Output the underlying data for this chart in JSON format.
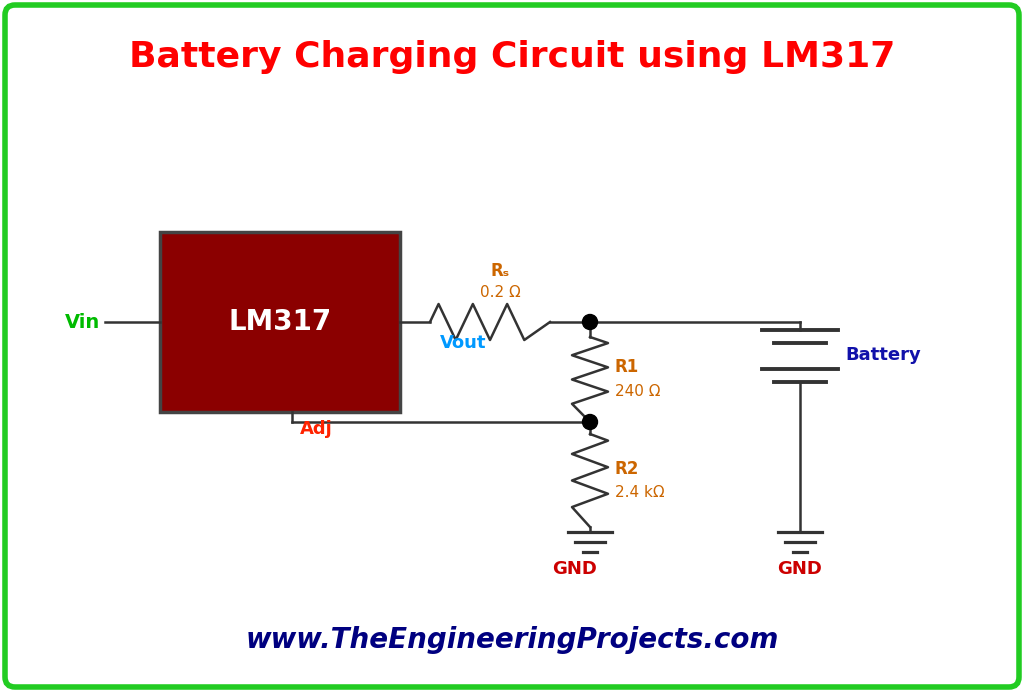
{
  "title": "Battery Charging Circuit using LM317",
  "title_color": "#FF0000",
  "title_fontsize": 26,
  "website": "www.TheEngineeringProjects.com",
  "website_color": "#000080",
  "website_fontsize": 20,
  "bg_color": "#FFFFFF",
  "border_color": "#22CC22",
  "lm317_box_color": "#8B0000",
  "lm317_border_color": "#444444",
  "lm317_text_color": "#FFFFFF",
  "lm317_label": "LM317",
  "vin_label": "Vin",
  "vin_color": "#00BB00",
  "vout_label": "Vout",
  "vout_color": "#0099FF",
  "adj_label": "Adj",
  "adj_color": "#FF2200",
  "rs_label": "Rₛ",
  "rs_value": "0.2 Ω",
  "rs_label_color": "#CC6600",
  "r1_label": "R1",
  "r1_value": "240 Ω",
  "r1_label_color": "#CC6600",
  "r2_label": "R2",
  "r2_value": "2.4 kΩ",
  "r2_label_color": "#CC6600",
  "gnd_label": "GND",
  "gnd_color": "#CC0000",
  "battery_label": "Battery",
  "battery_color": "#1111AA",
  "line_color": "#333333",
  "line_width": 1.8,
  "dot_color": "#000000"
}
